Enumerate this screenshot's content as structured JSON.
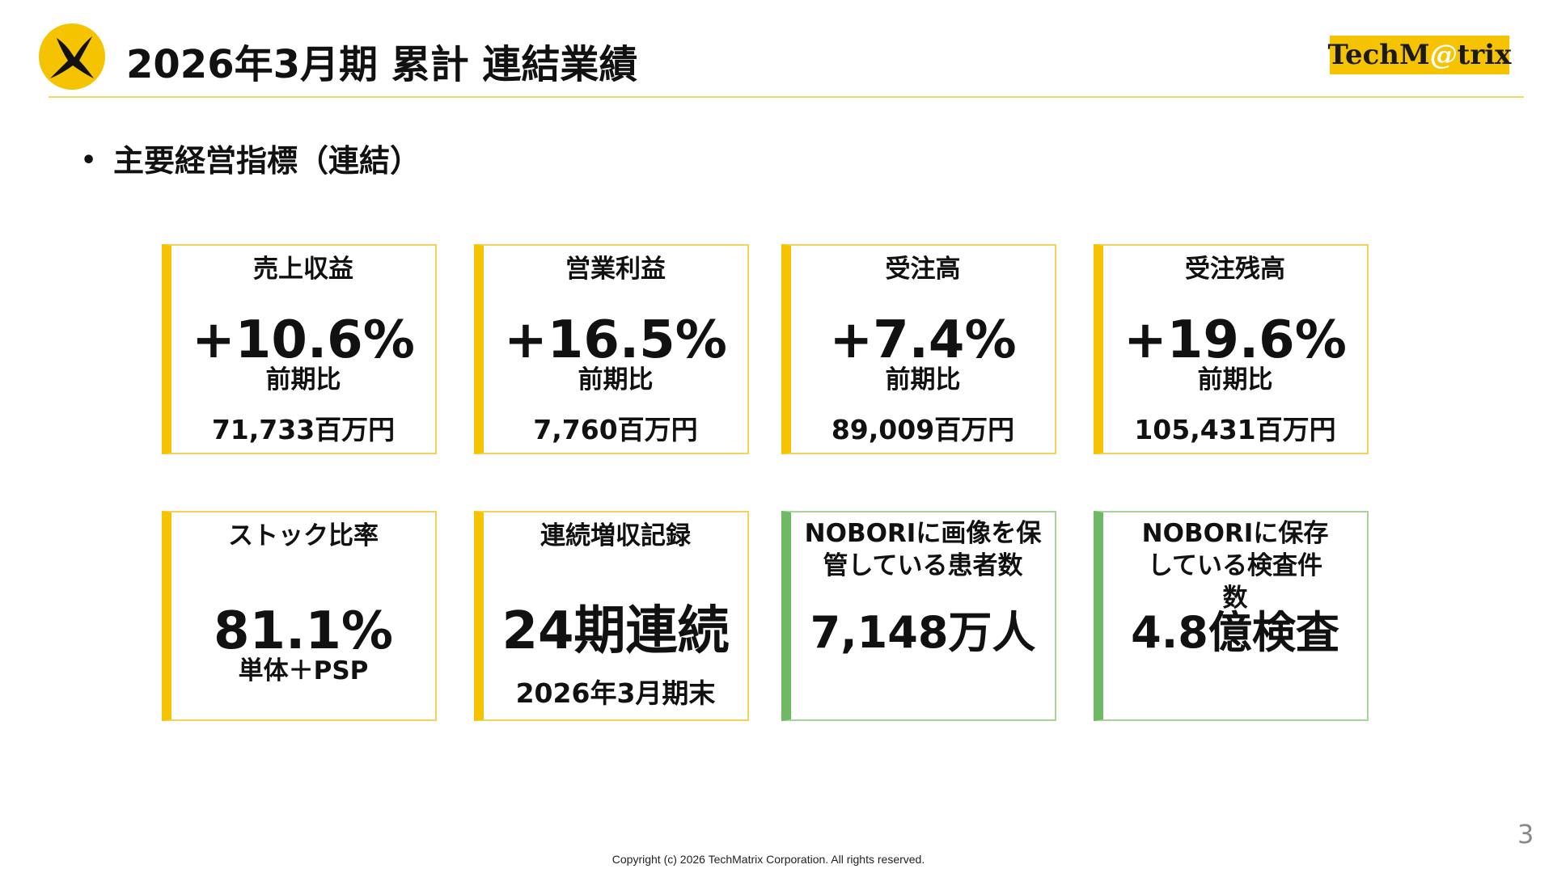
{
  "header": {
    "title": "2026年3月期 累計 連結業績",
    "brand": {
      "pre": "TechM",
      "at": "@",
      "post": "trix"
    }
  },
  "section": {
    "bullet": "•",
    "heading": "主要経営指標（連結）"
  },
  "kpis_row1": [
    {
      "label": "売上収益",
      "value": "+10.6%",
      "sub": "前期比",
      "amount": "71,733百万円"
    },
    {
      "label": "営業利益",
      "value": "+16.5%",
      "sub": "前期比",
      "amount": "7,760百万円"
    },
    {
      "label": "受注高",
      "value": "+7.4%",
      "sub": "前期比",
      "amount": "89,009百万円"
    },
    {
      "label": "受注残高",
      "value": "+19.6%",
      "sub": "前期比",
      "amount": "105,431百万円"
    }
  ],
  "kpis_row2": [
    {
      "label": "ストック比率",
      "value": "81.1%",
      "sub": "単体＋PSP"
    },
    {
      "label": "連続増収記録",
      "value": "24期連続",
      "amount": "2026年3月期末"
    },
    {
      "label": "NOBORIに画像を保管している患者数",
      "value": "7,148万人"
    },
    {
      "label": "NOBORIに保存している検査件数",
      "value": "4.8億検査"
    }
  ],
  "footer": {
    "page": "3",
    "copyright": "Copyright (c) 2026 TechMatrix Corporation. All rights reserved."
  },
  "colors": {
    "accent_yellow": "#f6c300",
    "accent_green": "#6fb866"
  }
}
